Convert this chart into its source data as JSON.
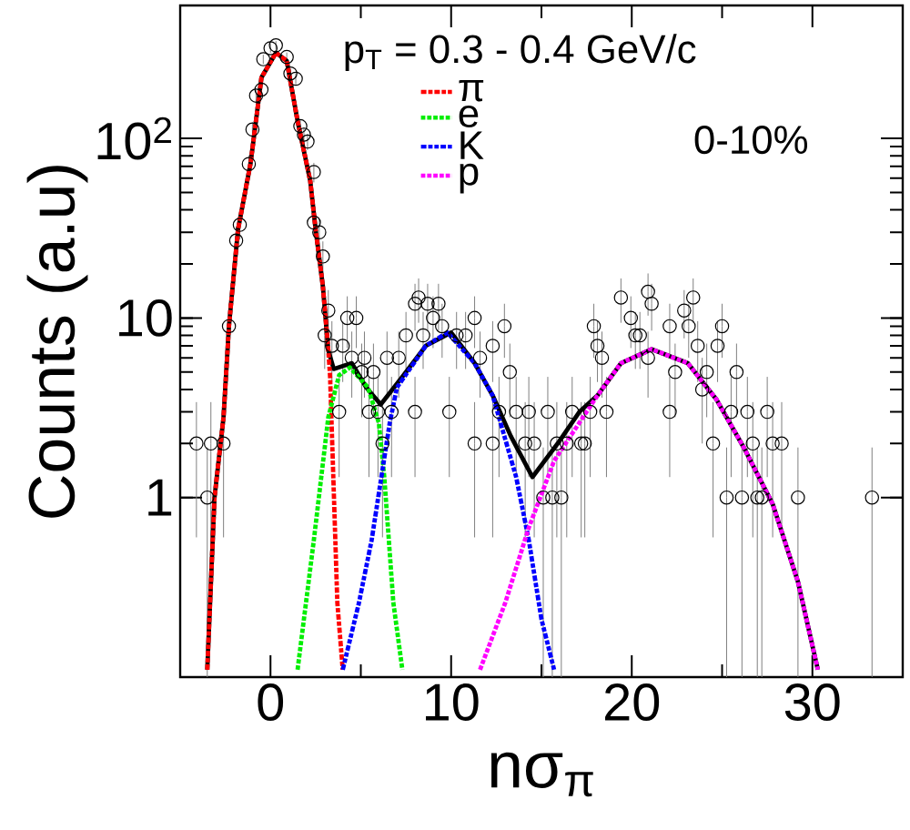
{
  "chart_data": {
    "type": "scatter",
    "xlabel": "nσ$_{π}$",
    "ylabel": "Counts (a.u)",
    "annotations": [
      "p$_{T}$ = 0.3 - 0.4 GeV/c",
      "0-10%"
    ],
    "xlim": [
      -5,
      35
    ],
    "xticks": [
      0,
      10,
      20,
      30
    ],
    "ylim": [
      0.1,
      550
    ],
    "yticks": [
      1,
      10,
      {
        "value": 100,
        "label": "10$^{2}$"
      }
    ],
    "log": "y",
    "legend": "top",
    "series": [
      {
        "color": "#000000",
        "marker": "circle",
        "x": [
          -4.1,
          -3.5,
          -3.3,
          -2.6,
          -2.3,
          -1.9,
          -1.7,
          -1.2,
          -1.0,
          -0.8,
          -0.5,
          -0.4,
          0.0,
          0.3,
          0.9,
          1.1,
          1.4,
          1.65,
          1.85,
          2.05,
          2.4,
          2.4,
          2.7,
          2.9,
          3.2,
          3.0,
          3.4,
          3.8,
          4.0,
          4.25,
          4.5,
          4.75,
          5.05,
          5.2,
          5.45,
          5.7,
          5.95,
          6.2,
          6.45,
          6.7,
          7.1,
          7.5,
          8.0,
          8.0,
          8.2,
          8.45,
          8.7,
          9.0,
          9.3,
          9.5,
          9.9,
          10.3,
          10.8,
          11.3,
          11.3,
          11.6,
          12.3,
          12.3,
          12.65,
          12.95,
          13.25,
          13.6,
          14.1,
          14.3,
          14.6,
          15.1,
          15.35,
          15.6,
          15.85,
          16.1,
          16.4,
          16.7,
          17.2,
          17.4,
          17.7,
          17.9,
          18.1,
          18.35,
          18.6,
          19.4,
          19.95,
          20.2,
          20.45,
          20.9,
          20.9,
          21.1,
          22.1,
          22.1,
          22.4,
          22.9,
          23.15,
          23.4,
          23.65,
          23.9,
          24.15,
          24.5,
          24.75,
          25.0,
          25.25,
          25.5,
          25.8,
          26.1,
          26.4,
          26.7,
          26.95,
          27.2,
          27.5,
          27.8,
          28.3,
          29.2,
          33.3
        ],
        "values": [
          2,
          1,
          2,
          2,
          9,
          27,
          33,
          72,
          112,
          173,
          187,
          276,
          318,
          330,
          284,
          230,
          215,
          117,
          105,
          96,
          65,
          34,
          30,
          22,
          11,
          8,
          7,
          3,
          7,
          10,
          6,
          10,
          5,
          6,
          3,
          5,
          3,
          2,
          6,
          3,
          6,
          8,
          12,
          3,
          13,
          8,
          12,
          10,
          12,
          9,
          3,
          8,
          8,
          10,
          2,
          6,
          7,
          2,
          3,
          9,
          5,
          3,
          2,
          3,
          2,
          1,
          3,
          1,
          2,
          1,
          2,
          3,
          2,
          2,
          3,
          9,
          7,
          6,
          3,
          13,
          10,
          8,
          8,
          14,
          6,
          12,
          9,
          3,
          5,
          11,
          9,
          13,
          7,
          4,
          5,
          2,
          7,
          9,
          1,
          3,
          5,
          1,
          3,
          2,
          1,
          1,
          3,
          2,
          2,
          1,
          1
        ],
        "errors": [
          1.4,
          0.9,
          1.4,
          1.4,
          3,
          5.2,
          5.7,
          8.5,
          10.6,
          13.2,
          13.7,
          16.6,
          17.8,
          18.2,
          16.9,
          15.2,
          14.7,
          10.8,
          10.2,
          9.8,
          8.1,
          5.8,
          5.5,
          4.7,
          3.3,
          2.8,
          2.6,
          1.7,
          2.6,
          3.2,
          2.4,
          3.2,
          2.2,
          2.4,
          1.7,
          2.2,
          1.7,
          1.4,
          2.4,
          1.7,
          2.4,
          2.8,
          3.5,
          1.7,
          3.6,
          2.8,
          3.5,
          3.2,
          3.5,
          3,
          1.7,
          2.8,
          2.8,
          3.2,
          1.4,
          2.4,
          2.6,
          1.4,
          1.7,
          3,
          2.2,
          1.7,
          1.4,
          1.7,
          1.4,
          0.9,
          1.7,
          0.9,
          1.4,
          0.9,
          1.4,
          1.7,
          1.4,
          1.4,
          1.7,
          3,
          2.6,
          2.4,
          1.7,
          3.6,
          3.2,
          2.8,
          2.8,
          3.7,
          2.4,
          3.5,
          3,
          1.7,
          2.2,
          3.3,
          3,
          3.6,
          2.6,
          2,
          2.2,
          1.4,
          2.6,
          3,
          0.9,
          1.7,
          2.2,
          0.9,
          1.7,
          1.4,
          0.9,
          0.9,
          1.7,
          1.4,
          1.4,
          0.9,
          0.9
        ]
      },
      {
        "type": "line",
        "color": "#000000",
        "line_style": "solid",
        "x": [
          -3.5,
          -3.1,
          -2.6,
          -2.3,
          -1.8,
          -1.1,
          -0.5,
          0.3,
          0.9,
          1.5,
          2.2,
          2.5,
          2.9,
          3.2,
          3.5,
          4.5,
          5.3,
          6.1,
          7.3,
          8.6,
          10,
          11.3,
          12.3,
          13.3,
          14.5,
          15.9,
          17.1,
          18.1,
          19.4,
          21.1,
          23.1,
          24.7,
          26.2,
          27.8,
          29.2,
          30.3
        ],
        "values": [
          0.11,
          1,
          2.8,
          9,
          31,
          73,
          218,
          300,
          270,
          125,
          58,
          31,
          15,
          6.6,
          5.2,
          5.6,
          4.1,
          3.3,
          4.7,
          7,
          8.3,
          5.6,
          3.7,
          2.2,
          1.3,
          2.0,
          3,
          3.7,
          5.6,
          6.7,
          5.6,
          3.5,
          1.9,
          0.92,
          0.34,
          0.11
        ]
      },
      {
        "type": "line",
        "name": "π",
        "color": "#ff0000",
        "line_style": "dashdot",
        "x": [
          -3.5,
          -3.1,
          -2.6,
          -2.3,
          -1.8,
          -1.1,
          -0.5,
          0.3,
          0.9,
          1.5,
          2.2,
          2.5,
          2.9,
          3.2,
          3.3,
          3.7,
          4.0
        ],
        "values": [
          0.11,
          1,
          2.8,
          9,
          31,
          73,
          218,
          300,
          270,
          125,
          58,
          31,
          15,
          6.6,
          4.7,
          0.26,
          0.11
        ]
      },
      {
        "type": "line",
        "name": "e",
        "color": "#00ee00",
        "line_style": "dotted",
        "x": [
          1.5,
          2.4,
          3.2,
          3.8,
          4.4,
          5.4,
          6.0,
          6.3,
          6.8,
          7.3
        ],
        "values": [
          0.11,
          0.58,
          2.8,
          4.8,
          5.3,
          4.1,
          2.6,
          1.3,
          0.26,
          0.11
        ]
      },
      {
        "type": "line",
        "name": "K",
        "color": "#0000ff",
        "line_style": "dashdotdot",
        "x": [
          4.0,
          4.9,
          5.6,
          6.6,
          7.0,
          8.6,
          9.8,
          11.3,
          12.3,
          13.6,
          14.3,
          15.0,
          15.7
        ],
        "values": [
          0.11,
          0.26,
          0.58,
          2.6,
          4.1,
          7,
          8.3,
          5.6,
          3.7,
          1.3,
          0.58,
          0.21,
          0.11
        ]
      },
      {
        "type": "line",
        "name": "p",
        "color": "#ff00ff",
        "line_style": "dotted",
        "x": [
          11.6,
          13,
          14.3,
          15.7,
          18.1,
          19.4,
          21.1,
          23.1,
          24.7,
          26.2,
          27.8,
          29.2,
          30.3
        ],
        "values": [
          0.11,
          0.26,
          0.68,
          1.6,
          3.7,
          5.6,
          6.7,
          5.6,
          3.5,
          1.9,
          0.92,
          0.34,
          0.11
        ]
      }
    ]
  }
}
